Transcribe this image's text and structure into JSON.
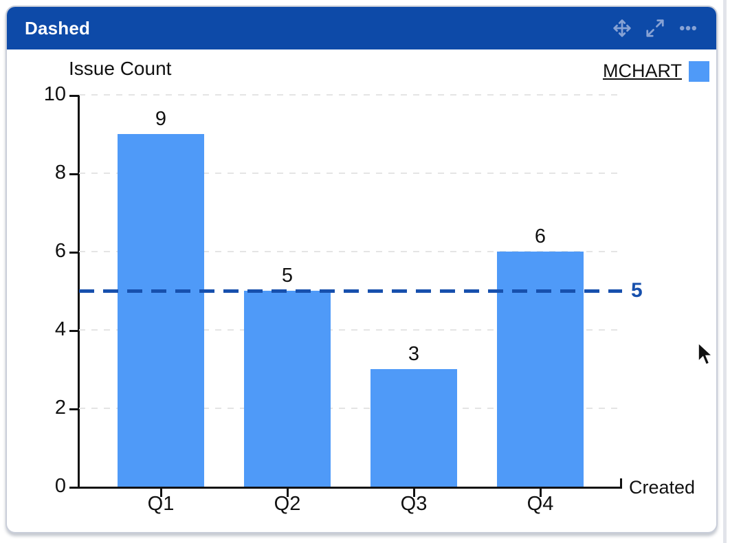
{
  "widget": {
    "title": "Dashed",
    "toolbar": {
      "move_icon": "move",
      "expand_icon": "expand",
      "more_icon": "more-options"
    }
  },
  "chart_data": {
    "type": "bar",
    "title": "Issue Count",
    "ylabel": "Issue Count",
    "xlabel": "Created",
    "categories": [
      "Q1",
      "Q2",
      "Q3",
      "Q4"
    ],
    "values": [
      9,
      5,
      3,
      6
    ],
    "data_labels": [
      "9",
      "5",
      "3",
      "6"
    ],
    "series": [
      {
        "name": "MCHART",
        "values": [
          9,
          5,
          3,
          6
        ],
        "color": "#4f9af8"
      }
    ],
    "ylim": [
      0,
      10
    ],
    "yticks": [
      0,
      2,
      4,
      6,
      8,
      10
    ],
    "grid": true,
    "legend": {
      "label": "MCHART",
      "position": "top-right",
      "swatch_color": "#4f9af8"
    },
    "reference_line": {
      "value": 5,
      "label": "5",
      "style": "dashed",
      "color": "#1750ad"
    }
  },
  "colors": {
    "header_bg": "#0d4aa8",
    "header_text": "#ffffff",
    "header_icon": "#87a2d4",
    "bar": "#4f9af8",
    "reference": "#1750ad",
    "gridline": "#e4e4e4",
    "axis": "#111111",
    "card_border": "#c9ced9"
  }
}
